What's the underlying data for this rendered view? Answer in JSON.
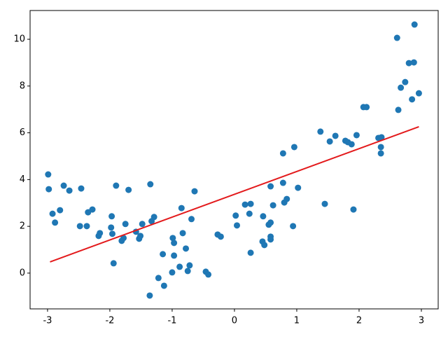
{
  "chart_data": {
    "type": "scatter",
    "xlim": [
      -3.28,
      3.27
    ],
    "ylim": [
      -1.53,
      11.23
    ],
    "xticks": [
      -3,
      -2,
      -1,
      0,
      1,
      2,
      3
    ],
    "yticks": [
      0,
      2,
      4,
      6,
      8,
      10
    ],
    "grid": false,
    "series": [
      {
        "type": "scatter",
        "color": "#1f77b4",
        "x": [
          -2.99,
          -2.98,
          -2.92,
          -2.88,
          -2.8,
          -2.74,
          -2.65,
          -2.48,
          -2.46,
          -2.37,
          -2.35,
          -2.28,
          -2.18,
          -2.16,
          -1.98,
          -1.97,
          -1.96,
          -1.94,
          -1.9,
          -1.81,
          -1.78,
          -1.75,
          -1.7,
          -1.58,
          -1.53,
          -1.51,
          -1.48,
          -1.36,
          -1.35,
          -1.33,
          -1.29,
          -1.22,
          -1.15,
          -1.13,
          -1.0,
          -0.99,
          -0.97,
          -0.97,
          -0.88,
          -0.85,
          -0.83,
          -0.78,
          -0.75,
          -0.72,
          -0.69,
          -0.64,
          -0.46,
          -0.42,
          -0.27,
          -0.22,
          0.02,
          0.04,
          0.17,
          0.24,
          0.26,
          0.26,
          0.45,
          0.46,
          0.48,
          0.55,
          0.58,
          0.58,
          0.58,
          0.58,
          0.62,
          0.78,
          0.78,
          0.8,
          0.84,
          0.94,
          0.96,
          1.02,
          1.38,
          1.45,
          1.53,
          1.62,
          1.78,
          1.82,
          1.88,
          1.91,
          1.96,
          2.07,
          2.12,
          2.31,
          2.36,
          2.35,
          2.35,
          2.61,
          2.63,
          2.67,
          2.74,
          2.8,
          2.85,
          2.88,
          2.89,
          2.96
        ],
        "values": [
          4.22,
          3.59,
          2.54,
          2.16,
          2.69,
          3.74,
          3.53,
          2.01,
          3.62,
          2.01,
          2.6,
          2.72,
          1.59,
          1.71,
          1.95,
          2.43,
          1.68,
          0.42,
          3.74,
          1.38,
          1.5,
          2.1,
          3.56,
          1.77,
          1.47,
          1.59,
          2.1,
          -0.96,
          3.8,
          2.22,
          2.4,
          -0.21,
          0.81,
          -0.54,
          0.03,
          1.5,
          1.29,
          0.75,
          0.27,
          2.78,
          1.71,
          1.05,
          0.09,
          0.33,
          2.31,
          3.5,
          0.06,
          -0.06,
          1.65,
          1.56,
          2.46,
          2.04,
          2.93,
          2.54,
          2.96,
          0.87,
          1.35,
          2.43,
          1.2,
          2.07,
          2.16,
          1.56,
          1.44,
          3.71,
          2.9,
          5.12,
          3.86,
          3.02,
          3.17,
          2.01,
          5.39,
          3.65,
          6.05,
          2.96,
          5.63,
          5.87,
          5.66,
          5.6,
          5.51,
          2.72,
          5.9,
          7.1,
          7.1,
          5.78,
          5.81,
          5.39,
          5.12,
          10.06,
          6.98,
          7.93,
          8.17,
          8.98,
          7.43,
          9.01,
          10.63,
          7.69
        ]
      },
      {
        "type": "line",
        "color": "#e31a1c",
        "x": [
          -2.96,
          2.96
        ],
        "values": [
          0.48,
          6.26
        ]
      }
    ]
  }
}
